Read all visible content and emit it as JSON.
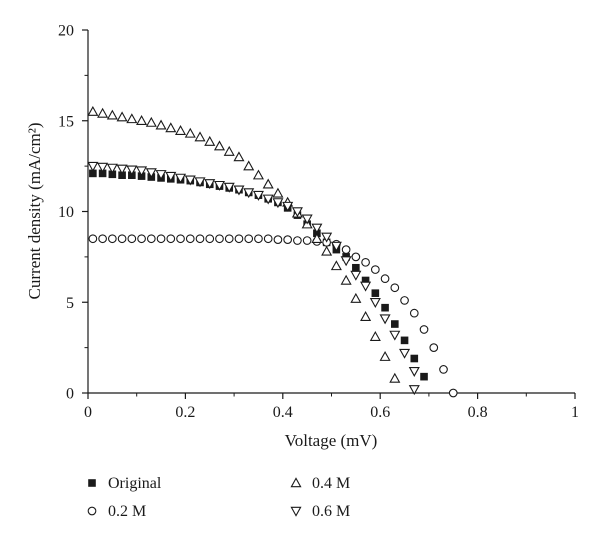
{
  "chart_data": {
    "type": "scatter",
    "xlabel": "Voltage (mV)",
    "ylabel": "Current density (mA/cm²)",
    "xlim": [
      0,
      1
    ],
    "ylim": [
      0,
      20
    ],
    "x_ticks": [
      "0",
      "0.2",
      "0.4",
      "0.6",
      "0.8",
      "1"
    ],
    "y_ticks": [
      "0",
      "5",
      "10",
      "15",
      "20"
    ],
    "grid": false,
    "legend_position": "bottom",
    "series": [
      {
        "name": "Original",
        "marker": "filled-square",
        "x": [
          0.01,
          0.03,
          0.05,
          0.07,
          0.09,
          0.11,
          0.13,
          0.15,
          0.17,
          0.19,
          0.21,
          0.23,
          0.25,
          0.27,
          0.29,
          0.31,
          0.33,
          0.35,
          0.37,
          0.39,
          0.41,
          0.43,
          0.45,
          0.47,
          0.49,
          0.51,
          0.53,
          0.55,
          0.57,
          0.59,
          0.61,
          0.63,
          0.65,
          0.67,
          0.69
        ],
        "y": [
          12.1,
          12.1,
          12.05,
          12.0,
          12.0,
          11.95,
          11.9,
          11.85,
          11.8,
          11.75,
          11.7,
          11.6,
          11.5,
          11.4,
          11.3,
          11.2,
          11.05,
          10.9,
          10.7,
          10.5,
          10.2,
          9.8,
          9.3,
          8.8,
          8.3,
          7.9,
          7.5,
          6.9,
          6.2,
          5.5,
          4.7,
          3.8,
          2.9,
          1.9,
          0.9
        ]
      },
      {
        "name": "0.2 M",
        "marker": "open-circle",
        "x": [
          0.01,
          0.03,
          0.05,
          0.07,
          0.09,
          0.11,
          0.13,
          0.15,
          0.17,
          0.19,
          0.21,
          0.23,
          0.25,
          0.27,
          0.29,
          0.31,
          0.33,
          0.35,
          0.37,
          0.39,
          0.41,
          0.43,
          0.45,
          0.47,
          0.49,
          0.51,
          0.53,
          0.55,
          0.57,
          0.59,
          0.61,
          0.63,
          0.65,
          0.67,
          0.69,
          0.71,
          0.73,
          0.75
        ],
        "y": [
          8.5,
          8.5,
          8.5,
          8.5,
          8.5,
          8.5,
          8.5,
          8.5,
          8.5,
          8.5,
          8.5,
          8.5,
          8.5,
          8.5,
          8.5,
          8.5,
          8.5,
          8.5,
          8.5,
          8.45,
          8.45,
          8.4,
          8.4,
          8.35,
          8.3,
          8.2,
          7.9,
          7.5,
          7.2,
          6.8,
          6.3,
          5.8,
          5.1,
          4.4,
          3.5,
          2.5,
          1.3,
          0.0
        ]
      },
      {
        "name": "0.4 M",
        "marker": "open-triangle-up",
        "x": [
          0.01,
          0.03,
          0.05,
          0.07,
          0.09,
          0.11,
          0.13,
          0.15,
          0.17,
          0.19,
          0.21,
          0.23,
          0.25,
          0.27,
          0.29,
          0.31,
          0.33,
          0.35,
          0.37,
          0.39,
          0.41,
          0.43,
          0.45,
          0.47,
          0.49,
          0.51,
          0.53,
          0.55,
          0.57,
          0.59,
          0.61,
          0.63
        ],
        "y": [
          15.5,
          15.4,
          15.3,
          15.2,
          15.1,
          15.0,
          14.9,
          14.75,
          14.6,
          14.45,
          14.3,
          14.1,
          13.85,
          13.6,
          13.3,
          13.0,
          12.5,
          12.0,
          11.5,
          11.0,
          10.5,
          9.9,
          9.3,
          8.5,
          7.8,
          7.0,
          6.2,
          5.2,
          4.2,
          3.1,
          2.0,
          0.8
        ]
      },
      {
        "name": "0.6 M",
        "marker": "open-triangle-down",
        "x": [
          0.01,
          0.03,
          0.05,
          0.07,
          0.09,
          0.11,
          0.13,
          0.15,
          0.17,
          0.19,
          0.21,
          0.23,
          0.25,
          0.27,
          0.29,
          0.31,
          0.33,
          0.35,
          0.37,
          0.39,
          0.41,
          0.43,
          0.45,
          0.47,
          0.49,
          0.51,
          0.53,
          0.55,
          0.57,
          0.59,
          0.61,
          0.63,
          0.65,
          0.67
        ],
        "y": [
          12.5,
          12.45,
          12.4,
          12.35,
          12.3,
          12.25,
          12.15,
          12.05,
          11.95,
          11.85,
          11.75,
          11.65,
          11.55,
          11.45,
          11.35,
          11.2,
          11.05,
          10.9,
          10.7,
          10.5,
          10.3,
          10.0,
          9.6,
          9.1,
          8.6,
          8.1,
          7.3,
          6.5,
          5.9,
          5.0,
          4.1,
          3.2,
          2.2,
          1.2
        ]
      },
      {
        "name": "",
        "marker": "open-triangle-down",
        "x": [
          0.67
        ],
        "y": [
          0.2
        ]
      }
    ]
  }
}
